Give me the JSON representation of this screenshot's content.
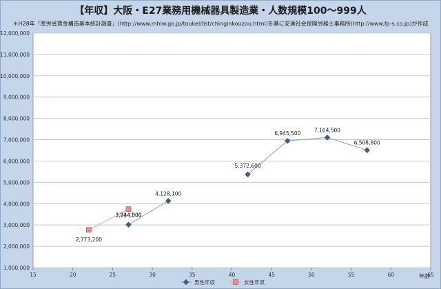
{
  "title": "【年収】大阪・E27業務用機械器具製造業・人数規模100～999人",
  "source_note": "＊H28年「厚労省賃金構造基本統計調査」(http://www.mhlw.go.jp/toukei/list/chinginkouzou.html)を基に安達社会保険労務士事務所(http://www.fp-s.co.jp)が作成",
  "chart_data": {
    "type": "scatter",
    "title": "【年収】大阪・E27業務用機械器具製造業・人数規模100～999人",
    "xlabel": "年齢",
    "ylabel": "",
    "xlim": [
      15,
      65
    ],
    "ylim": [
      1000000,
      12000000
    ],
    "x_ticks": [
      15,
      20,
      25,
      30,
      35,
      40,
      45,
      50,
      55,
      60,
      65
    ],
    "y_ticks": [
      1000000,
      2000000,
      3000000,
      4000000,
      5000000,
      6000000,
      7000000,
      8000000,
      9000000,
      10000000,
      11000000,
      12000000
    ],
    "grid": "horizontal",
    "legend": "bottom-center",
    "series": [
      {
        "name": "男性年収",
        "color": "#3e5f8a",
        "marker": "diamond",
        "segments": [
          [
            {
              "x": 27,
              "y": 3014500,
              "label": "3,014,500"
            },
            {
              "x": 32,
              "y": 4128100,
              "label": "4,128,100"
            }
          ],
          [
            {
              "x": 42,
              "y": 5372600,
              "label": "5,372,600"
            },
            {
              "x": 47,
              "y": 6945500,
              "label": "6,945,500"
            },
            {
              "x": 52,
              "y": 7104500,
              "label": "7,104,500"
            },
            {
              "x": 57,
              "y": 6508800,
              "label": "6,508,800"
            }
          ]
        ]
      },
      {
        "name": "女性年収",
        "color": "#e89090",
        "marker": "square",
        "segments": [
          [
            {
              "x": 22,
              "y": 2773200,
              "label": "2,773,200"
            },
            {
              "x": 27,
              "y": 3744000,
              "label": "3,744,000"
            }
          ]
        ]
      }
    ]
  }
}
